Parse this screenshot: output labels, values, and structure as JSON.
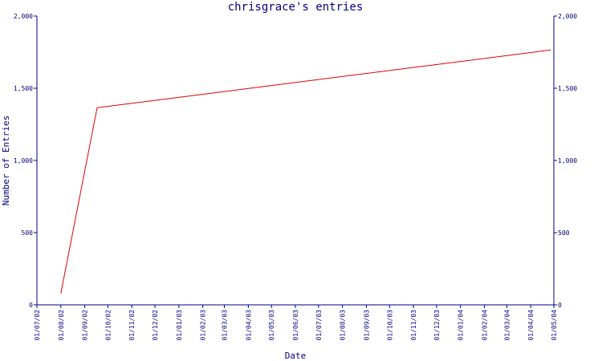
{
  "chart_data": {
    "type": "line",
    "title": "chrisgrace's entries",
    "xlabel": "Date",
    "ylabel": "Number of Entries",
    "ylim": [
      0,
      2000
    ],
    "y_ticks": [
      0,
      500,
      1000,
      1500,
      2000
    ],
    "y_tick_labels": [
      "0",
      "500",
      "1,000",
      "1,500",
      "2,000"
    ],
    "x_tick_labels": [
      "01/07/02",
      "01/08/02",
      "01/09/02",
      "01/10/02",
      "01/11/02",
      "01/12/02",
      "01/01/03",
      "01/02/03",
      "01/03/03",
      "01/04/03",
      "01/05/03",
      "01/06/03",
      "01/07/03",
      "01/08/03",
      "01/09/03",
      "01/10/03",
      "01/11/03",
      "01/12/03",
      "01/01/04",
      "01/02/04",
      "01/03/04",
      "01/04/04",
      "01/05/04"
    ],
    "xlim": [
      "2002-07-01",
      "2004-05-01"
    ],
    "grid": false,
    "legend": "none",
    "series": [
      {
        "color": "#e00000",
        "points": [
          {
            "x": "2002-08-01",
            "y": 80
          },
          {
            "x": "2002-09-17",
            "y": 1365
          },
          {
            "x": "2004-04-27",
            "y": 1765
          }
        ]
      }
    ],
    "colors": {
      "axis": "#000080",
      "text": "#000080",
      "line": "#e00000",
      "background": "#ffffff"
    }
  }
}
